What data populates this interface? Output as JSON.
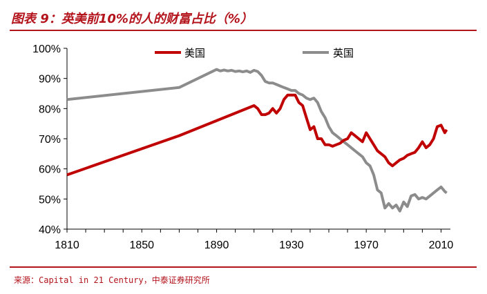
{
  "header": {
    "title": "图表 9：英美前10%的人的财富占比（%）"
  },
  "footer": {
    "source": "来源：Capital in 21 Century，中泰证券研究所"
  },
  "colors": {
    "accent": "#b3131b",
    "us": "#c00000",
    "uk": "#8c8c8c"
  },
  "chart_data": {
    "type": "line",
    "title": "图表 9：英美前10%的人的财富占比（%）",
    "xlabel": "",
    "ylabel": "",
    "xlim": [
      1810,
      2015
    ],
    "ylim": [
      40,
      100
    ],
    "x_ticks": [
      "1810",
      "1850",
      "1890",
      "1930",
      "1970",
      "2010"
    ],
    "y_ticks": [
      "40%",
      "50%",
      "60%",
      "70%",
      "80%",
      "90%",
      "100%"
    ],
    "legend_position": "top",
    "grid": false,
    "series": [
      {
        "name": "美国",
        "color": "#c00000",
        "points": [
          [
            1810,
            58
          ],
          [
            1870,
            71
          ],
          [
            1910,
            81
          ],
          [
            1912,
            80
          ],
          [
            1914,
            78
          ],
          [
            1916,
            78
          ],
          [
            1918,
            78.5
          ],
          [
            1920,
            80
          ],
          [
            1922,
            78.5
          ],
          [
            1924,
            80
          ],
          [
            1926,
            83
          ],
          [
            1928,
            84.5
          ],
          [
            1930,
            84.5
          ],
          [
            1932,
            84.5
          ],
          [
            1934,
            82
          ],
          [
            1936,
            81
          ],
          [
            1938,
            77
          ],
          [
            1940,
            73
          ],
          [
            1942,
            74
          ],
          [
            1944,
            70
          ],
          [
            1946,
            70
          ],
          [
            1948,
            68
          ],
          [
            1950,
            68
          ],
          [
            1952,
            67.5
          ],
          [
            1954,
            68
          ],
          [
            1956,
            68.5
          ],
          [
            1958,
            69.5
          ],
          [
            1960,
            70
          ],
          [
            1962,
            72
          ],
          [
            1964,
            71
          ],
          [
            1966,
            70
          ],
          [
            1968,
            69
          ],
          [
            1970,
            72
          ],
          [
            1972,
            70
          ],
          [
            1974,
            68
          ],
          [
            1976,
            66
          ],
          [
            1978,
            65
          ],
          [
            1980,
            64
          ],
          [
            1982,
            62
          ],
          [
            1984,
            61
          ],
          [
            1986,
            62
          ],
          [
            1988,
            63
          ],
          [
            1990,
            63.5
          ],
          [
            1992,
            64.5
          ],
          [
            1994,
            65
          ],
          [
            1996,
            65.5
          ],
          [
            1998,
            67
          ],
          [
            2000,
            69
          ],
          [
            2002,
            67
          ],
          [
            2004,
            68
          ],
          [
            2006,
            70
          ],
          [
            2008,
            74
          ],
          [
            2010,
            74.5
          ],
          [
            2012,
            72
          ],
          [
            2013,
            73
          ]
        ]
      },
      {
        "name": "英国",
        "color": "#8c8c8c",
        "points": [
          [
            1810,
            83
          ],
          [
            1870,
            87
          ],
          [
            1890,
            93
          ],
          [
            1892,
            92.5
          ],
          [
            1894,
            92.8
          ],
          [
            1896,
            92.5
          ],
          [
            1898,
            92.7
          ],
          [
            1900,
            92.3
          ],
          [
            1902,
            92.5
          ],
          [
            1904,
            92.2
          ],
          [
            1906,
            92.5
          ],
          [
            1908,
            92.0
          ],
          [
            1910,
            92.7
          ],
          [
            1912,
            92.3
          ],
          [
            1914,
            91
          ],
          [
            1916,
            89
          ],
          [
            1918,
            88.5
          ],
          [
            1920,
            88.5
          ],
          [
            1922,
            88
          ],
          [
            1924,
            87.5
          ],
          [
            1926,
            87
          ],
          [
            1928,
            86.5
          ],
          [
            1930,
            86
          ],
          [
            1932,
            86
          ],
          [
            1934,
            85
          ],
          [
            1936,
            84.5
          ],
          [
            1938,
            83.5
          ],
          [
            1940,
            83
          ],
          [
            1942,
            83.5
          ],
          [
            1944,
            82
          ],
          [
            1946,
            79
          ],
          [
            1948,
            77
          ],
          [
            1950,
            74
          ],
          [
            1952,
            72
          ],
          [
            1954,
            71
          ],
          [
            1956,
            70
          ],
          [
            1958,
            69
          ],
          [
            1960,
            68
          ],
          [
            1962,
            67
          ],
          [
            1964,
            66
          ],
          [
            1966,
            65
          ],
          [
            1968,
            64
          ],
          [
            1970,
            62
          ],
          [
            1972,
            61
          ],
          [
            1974,
            58
          ],
          [
            1976,
            53
          ],
          [
            1978,
            52
          ],
          [
            1980,
            47
          ],
          [
            1982,
            48.5
          ],
          [
            1984,
            47
          ],
          [
            1986,
            48
          ],
          [
            1988,
            46
          ],
          [
            1990,
            49
          ],
          [
            1992,
            47.5
          ],
          [
            1994,
            51
          ],
          [
            1996,
            51.5
          ],
          [
            1998,
            50
          ],
          [
            2000,
            50.5
          ],
          [
            2002,
            50
          ],
          [
            2004,
            51
          ],
          [
            2006,
            52
          ],
          [
            2008,
            53
          ],
          [
            2010,
            54
          ],
          [
            2012,
            52.5
          ],
          [
            2013,
            52
          ]
        ]
      }
    ]
  }
}
